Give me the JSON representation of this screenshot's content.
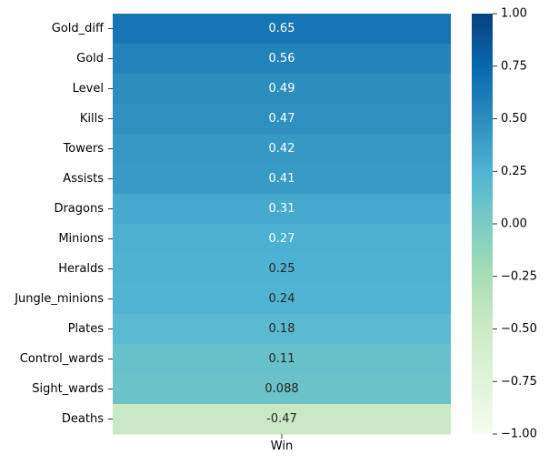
{
  "chart_data": {
    "type": "heatmap",
    "x_categories": [
      "Win"
    ],
    "y_categories": [
      "Gold_diff",
      "Gold",
      "Level",
      "Kills",
      "Towers",
      "Assists",
      "Dragons",
      "Minions",
      "Heralds",
      "Jungle_minions",
      "Plates",
      "Control_wards",
      "Sight_wards",
      "Deaths"
    ],
    "values": [
      0.65,
      0.56,
      0.49,
      0.47,
      0.42,
      0.41,
      0.31,
      0.27,
      0.25,
      0.24,
      0.18,
      0.11,
      0.088,
      -0.47
    ],
    "annotations": [
      "0.65",
      "0.56",
      "0.49",
      "0.47",
      "0.42",
      "0.41",
      "0.31",
      "0.27",
      "0.25",
      "0.24",
      "0.18",
      "0.11",
      "0.088",
      "-0.47"
    ],
    "colorbar": {
      "vmin": -1.0,
      "vmax": 1.0,
      "ticks": [
        "1.00",
        "0.75",
        "0.50",
        "0.25",
        "0.00",
        "−0.25",
        "−0.50",
        "−0.75",
        "−1.00"
      ],
      "tick_values": [
        1.0,
        0.75,
        0.5,
        0.25,
        0.0,
        -0.25,
        -0.5,
        -0.75,
        -1.0
      ],
      "colormap": "GnBu",
      "stops": [
        "#f7fcf0",
        "#e0f3db",
        "#ccebc5",
        "#a8ddb5",
        "#7bccc4",
        "#4eb3d3",
        "#2b8cbe",
        "#0868ac",
        "#084081"
      ]
    }
  }
}
